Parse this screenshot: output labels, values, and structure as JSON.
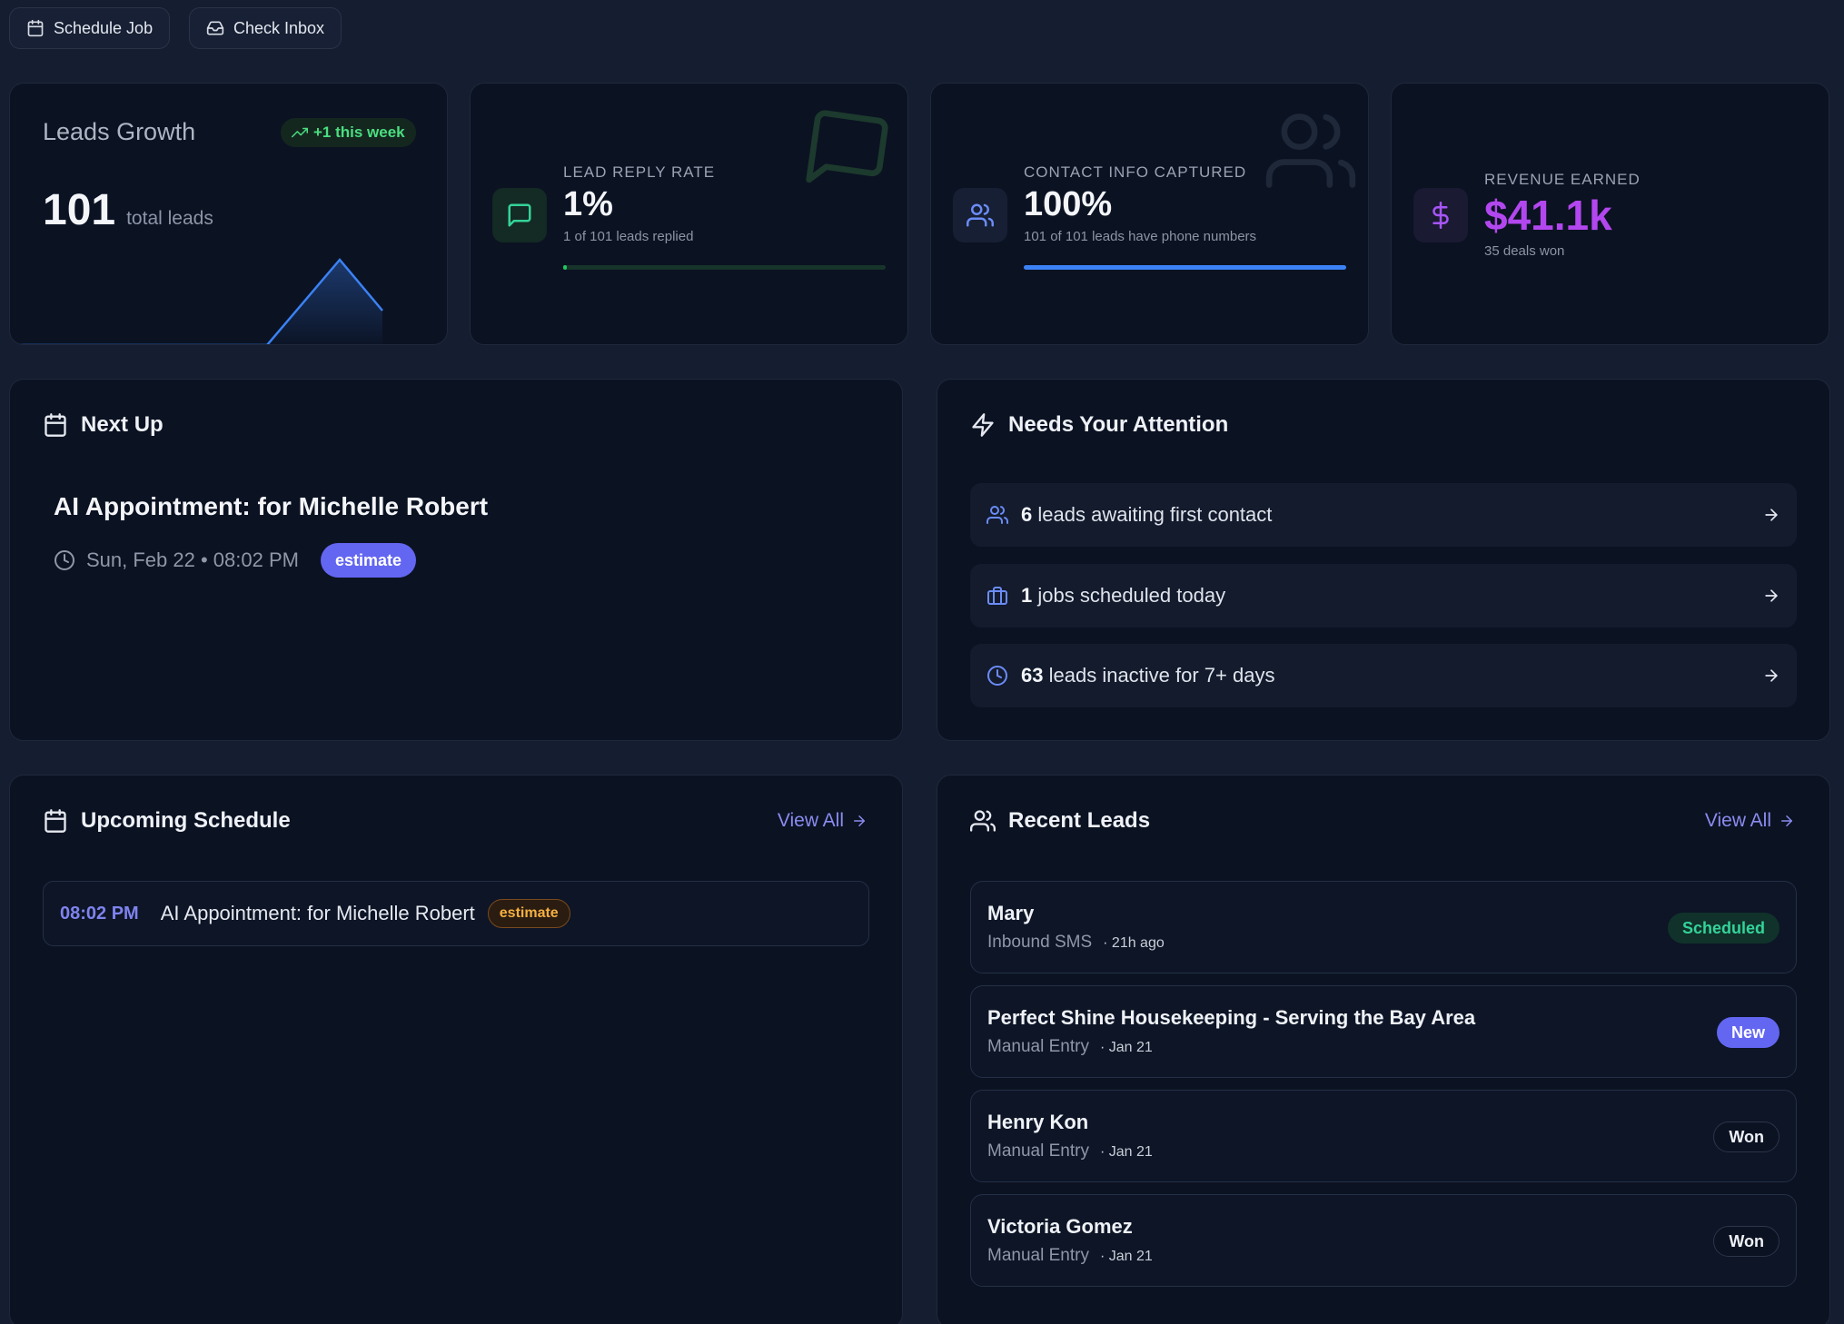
{
  "toolbar": {
    "schedule_label": "Schedule Job",
    "inbox_label": "Check Inbox"
  },
  "stats": {
    "leads_growth": {
      "title": "Leads Growth",
      "trend": "+1 this week",
      "value": "101",
      "unit": "total leads"
    },
    "reply_rate": {
      "label": "LEAD REPLY RATE",
      "value": "1%",
      "sub": "1 of 101 leads replied",
      "progress": 0.01
    },
    "contact_info": {
      "label": "CONTACT INFO CAPTURED",
      "value": "100%",
      "sub": "101 of 101 leads have phone numbers",
      "progress": 1.0
    },
    "revenue": {
      "label": "REVENUE EARNED",
      "value": "$41.1k",
      "sub": "35 deals won"
    }
  },
  "next_up": {
    "title": "Next Up",
    "appointment_title": "AI Appointment: for Michelle Robert",
    "appointment_time": "Sun, Feb 22 • 08:02 PM",
    "tag": "estimate"
  },
  "attention": {
    "title": "Needs Your Attention",
    "items": [
      {
        "count": "6",
        "text": "leads awaiting first contact"
      },
      {
        "count": "1",
        "text": "jobs scheduled today"
      },
      {
        "count": "63",
        "text": "leads inactive for 7+ days"
      }
    ]
  },
  "schedule": {
    "title": "Upcoming Schedule",
    "view_all": "View All",
    "items": [
      {
        "time": "08:02 PM",
        "title": "AI Appointment: for Michelle Robert",
        "tag": "estimate"
      }
    ]
  },
  "recent_leads": {
    "title": "Recent Leads",
    "view_all": "View All",
    "items": [
      {
        "name": "Mary",
        "source": "Inbound SMS",
        "when": "· 21h ago",
        "status": "Scheduled"
      },
      {
        "name": "Perfect Shine Housekeeping - Serving the Bay Area",
        "source": "Manual Entry",
        "when": "· Jan 21",
        "status": "New"
      },
      {
        "name": "Henry Kon",
        "source": "Manual Entry",
        "when": "· Jan 21",
        "status": "Won"
      },
      {
        "name": "Victoria Gomez",
        "source": "Manual Entry",
        "when": "· Jan 21",
        "status": "Won"
      }
    ]
  },
  "colors": {
    "background": "#151d30",
    "card": "#0b1222",
    "accent_blue": "#3b82f6",
    "accent_green": "#22c55e",
    "accent_purple": "#a855f7",
    "badge_indigo": "#6366f1"
  }
}
